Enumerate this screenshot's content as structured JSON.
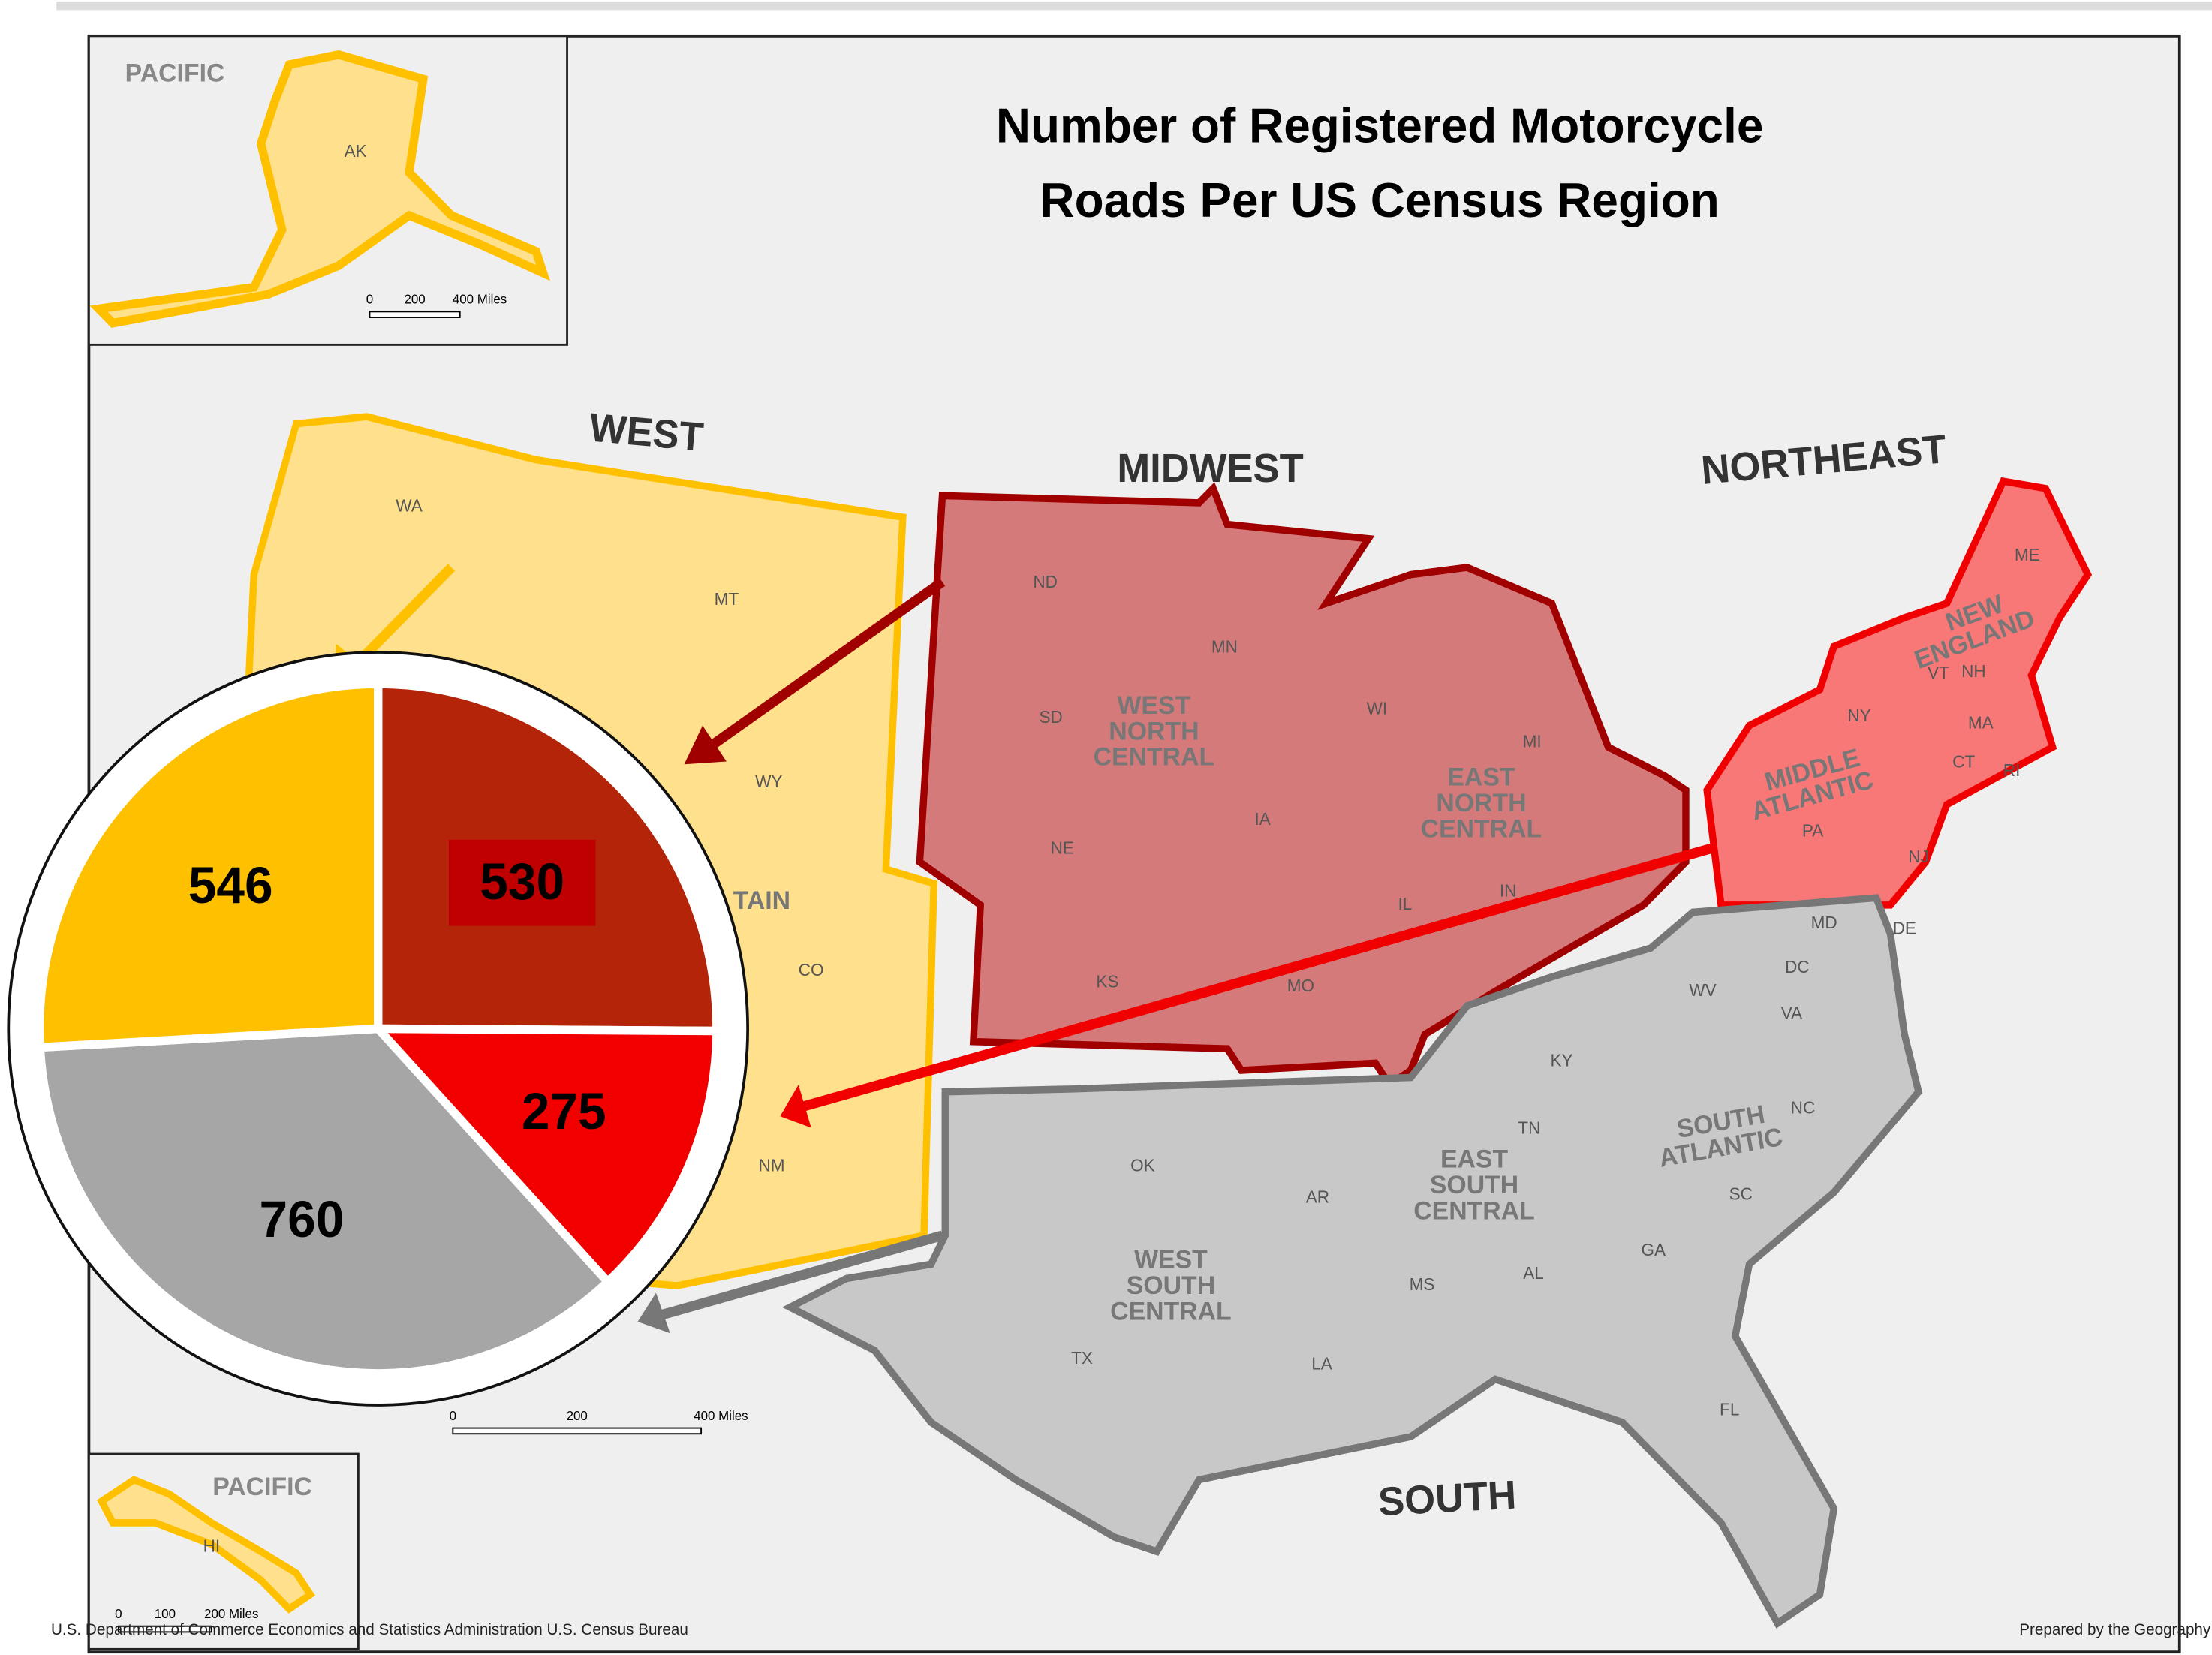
{
  "chart_data": {
    "type": "pie",
    "title": [
      "Number of Registered Motorcycle",
      "Roads Per US Census Region"
    ],
    "categories": [
      "MIDWEST",
      "NORTHEAST",
      "SOUTH",
      "WEST"
    ],
    "values": [
      530,
      275,
      760,
      546
    ],
    "colors": [
      "#b32409",
      "#f20000",
      "#a6a6a6",
      "#ffc000"
    ]
  },
  "map": {
    "alaska": {
      "sea": "PACIFIC",
      "state": "AK",
      "scale": [
        "0",
        "200",
        "400 Miles"
      ]
    },
    "hawaii": {
      "sea": "PACIFIC",
      "state": "HI",
      "scale": [
        "0",
        "100",
        "200 Miles"
      ]
    },
    "scale": [
      "0",
      "200",
      "400 Miles"
    ],
    "states": [
      "WA",
      "MT",
      "WY",
      "CO",
      "NM",
      "ND",
      "SD",
      "NE",
      "KS",
      "MN",
      "IA",
      "MO",
      "WI",
      "MI",
      "IL",
      "IN",
      "NY",
      "PA",
      "NJ",
      "ME",
      "VT",
      "NH",
      "MA",
      "CT",
      "RI",
      "DE",
      "MD",
      "DC",
      "WV",
      "VA",
      "KY",
      "TN",
      "NC",
      "SC",
      "GA",
      "AL",
      "MS",
      "FL",
      "AR",
      "LA",
      "OK",
      "TX"
    ],
    "divisions": [
      [
        "WEST",
        "NORTH",
        "CENTRAL"
      ],
      [
        "EAST",
        "NORTH",
        "CENTRAL"
      ],
      [
        "MIDDLE",
        "ATLANTIC"
      ],
      [
        "NEW",
        "ENGLAND"
      ],
      [
        "SOUTH",
        "ATLANTIC"
      ],
      [
        "EAST",
        "SOUTH",
        "CENTRAL"
      ],
      [
        "WEST",
        "SOUTH",
        "CENTRAL"
      ],
      [
        "TAIN"
      ]
    ],
    "footer": {
      "left": "U.S. Department of Commerce  Economics and Statistics Administration  U.S. Census Bureau",
      "right": "Prepared by the Geography Division"
    }
  }
}
